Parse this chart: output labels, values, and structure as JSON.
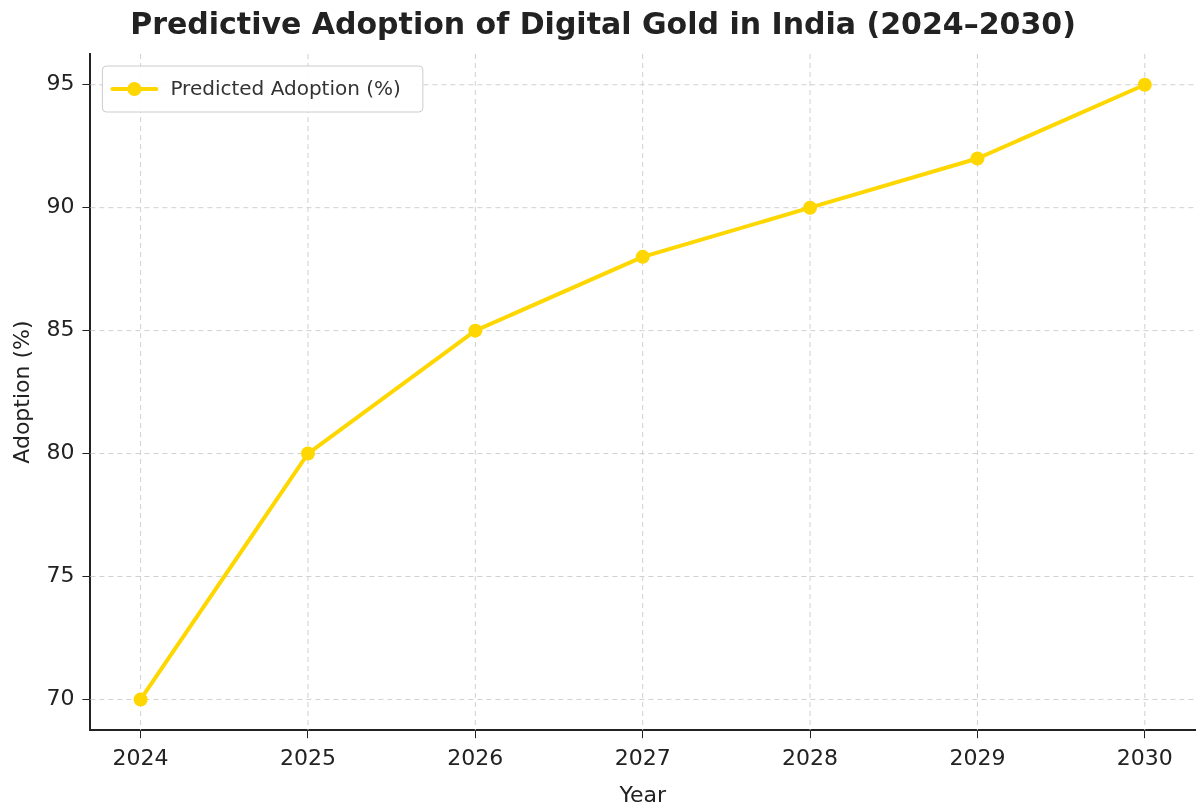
{
  "chart_data": {
    "type": "line",
    "title": "Predictive Adoption of Digital Gold in India (2024–2030)",
    "xlabel": "Year",
    "ylabel": "Adoption (%)",
    "x": [
      2024,
      2025,
      2026,
      2027,
      2028,
      2029,
      2030
    ],
    "series": [
      {
        "name": "Predicted Adoption (%)",
        "color": "#ffd700",
        "values": [
          70,
          80,
          85,
          88,
          90,
          92,
          95
        ]
      }
    ],
    "xlim": [
      2023.7,
      2030.3
    ],
    "xticks": [
      2024,
      2025,
      2026,
      2027,
      2028,
      2029,
      2030
    ],
    "ylim": [
      68.75,
      96.25
    ],
    "yticks": [
      70,
      75,
      80,
      85,
      90,
      95
    ],
    "grid": true,
    "legend": "top left",
    "marker": "circle",
    "line_style": "solid"
  }
}
